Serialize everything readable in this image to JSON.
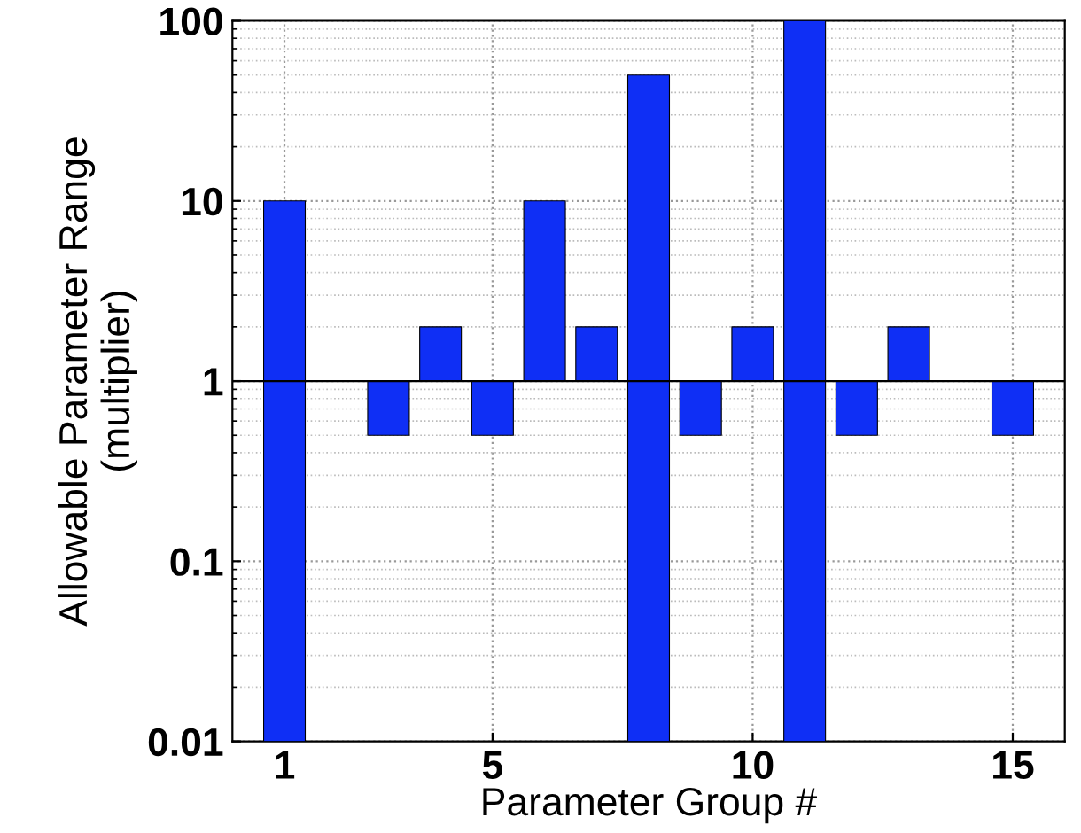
{
  "chart_data": {
    "type": "bar",
    "categories": [
      "1",
      null,
      null,
      null,
      "5",
      null,
      null,
      null,
      null,
      "10",
      null,
      null,
      null,
      null,
      "15"
    ],
    "values": [
      9.99,
      null,
      -0.5,
      1,
      -0.5,
      9,
      1,
      49.99,
      -0.5,
      1,
      99.99,
      -0.5,
      1,
      null,
      -0.5
    ],
    "base": [
      0.01,
      null,
      1,
      1,
      1,
      1,
      1,
      0.01,
      1,
      1,
      0.01,
      1,
      1,
      null,
      1
    ],
    "color": "#0f2ff5",
    "log": "y",
    "ylim": [
      0.01,
      100
    ],
    "yticks": [
      0.01,
      0.1,
      1,
      10,
      100
    ],
    "xlabel": "Parameter Group #",
    "ylabel": "Allowable Parameter Range\n(multiplier)",
    "ref_lines": [
      {
        "axis": "y",
        "value": 1,
        "color": "#000000"
      }
    ],
    "grid": true
  }
}
